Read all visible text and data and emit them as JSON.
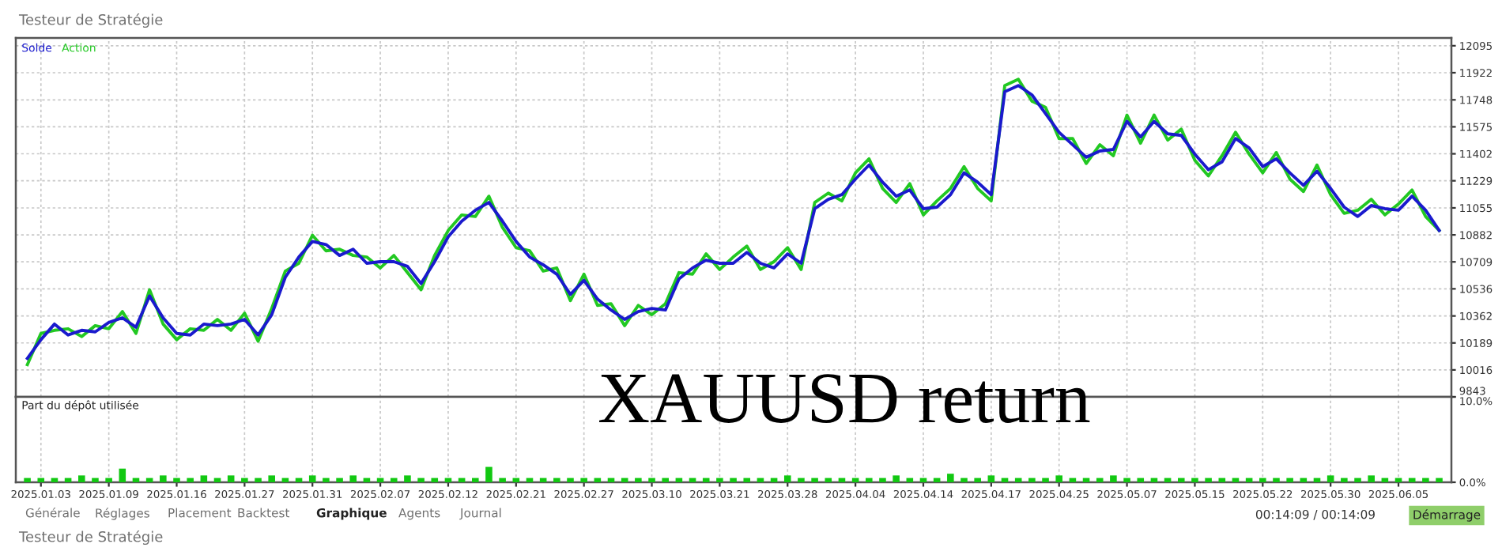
{
  "chart_data": [
    {
      "type": "line",
      "title": "Testeur de Stratégie",
      "legend": "top left",
      "grid": true,
      "tick_labels": "y",
      "annotations": [
        "XAUUSD return"
      ],
      "categories": [
        null,
        "2025.01.03",
        null,
        null,
        null,
        null,
        "2025.01.09",
        null,
        null,
        null,
        null,
        "2025.01.16",
        null,
        null,
        null,
        null,
        "2025.01.27",
        null,
        null,
        null,
        null,
        "2025.01.31",
        null,
        null,
        null,
        null,
        "2025.02.07",
        null,
        null,
        null,
        null,
        "2025.02.12",
        null,
        null,
        null,
        null,
        "2025.02.21",
        null,
        null,
        null,
        null,
        "2025.02.27",
        null,
        null,
        null,
        null,
        "2025.03.10",
        null,
        null,
        null,
        null,
        "2025.03.21",
        null,
        null,
        null,
        null,
        "2025.03.28",
        null,
        null,
        null,
        null,
        "2025.04.04",
        null,
        null,
        null,
        null,
        "2025.04.14",
        null,
        null,
        null,
        null,
        "2025.04.17",
        null,
        null,
        null,
        null,
        "2025.04.25",
        null,
        null,
        null,
        null,
        "2025.05.07",
        null,
        null,
        null,
        null,
        "2025.05.15",
        null,
        null,
        null,
        null,
        "2025.05.22",
        null,
        null,
        null,
        null,
        "2025.05.30",
        null,
        null,
        null,
        null,
        "2025.06.05",
        null,
        null,
        null
      ],
      "ylim": [
        9843,
        12145
      ],
      "yticks": [
        9843,
        10016,
        10189,
        10362,
        10536,
        10709,
        10882,
        11055,
        11229,
        11402,
        11575,
        11748,
        11922,
        12095
      ],
      "series": [
        {
          "name": "Solde",
          "color": "#1a1acd",
          "values": [
            10090,
            10210,
            10310,
            10240,
            10270,
            10260,
            10320,
            10350,
            10290,
            10490,
            10350,
            10250,
            10240,
            10310,
            10300,
            10310,
            10340,
            10240,
            10370,
            10610,
            10740,
            10840,
            10820,
            10750,
            10790,
            10700,
            10710,
            10710,
            10680,
            10570,
            10710,
            10870,
            10970,
            11040,
            11090,
            10970,
            10840,
            10740,
            10690,
            10630,
            10500,
            10590,
            10470,
            10400,
            10340,
            10390,
            10410,
            10400,
            10600,
            10670,
            10720,
            10700,
            10700,
            10770,
            10700,
            10670,
            10760,
            10700,
            11050,
            11110,
            11140,
            11240,
            11330,
            11220,
            11130,
            11170,
            11050,
            11060,
            11140,
            11280,
            11220,
            11140,
            11800,
            11840,
            11780,
            11660,
            11540,
            11460,
            11380,
            11420,
            11430,
            11610,
            11510,
            11610,
            11530,
            11520,
            11400,
            11300,
            11350,
            11500,
            11440,
            11320,
            11370,
            11280,
            11200,
            11290,
            11180,
            11060,
            11000,
            11070,
            11050,
            11040,
            11130,
            11040,
            10910
          ]
        },
        {
          "name": "Action",
          "color": "#22c822",
          "values": [
            10050,
            10250,
            10270,
            10280,
            10230,
            10300,
            10280,
            10390,
            10250,
            10530,
            10310,
            10210,
            10280,
            10270,
            10340,
            10270,
            10380,
            10200,
            10410,
            10650,
            10700,
            10880,
            10780,
            10790,
            10750,
            10740,
            10670,
            10750,
            10640,
            10530,
            10750,
            10910,
            11010,
            11000,
            11130,
            10930,
            10800,
            10780,
            10650,
            10670,
            10460,
            10630,
            10430,
            10440,
            10300,
            10430,
            10370,
            10440,
            10640,
            10630,
            10760,
            10660,
            10740,
            10810,
            10660,
            10710,
            10800,
            10660,
            11090,
            11150,
            11100,
            11280,
            11370,
            11180,
            11090,
            11210,
            11010,
            11100,
            11180,
            11320,
            11180,
            11100,
            11840,
            11880,
            11740,
            11700,
            11500,
            11500,
            11340,
            11460,
            11390,
            11650,
            11470,
            11650,
            11490,
            11560,
            11360,
            11260,
            11390,
            11540,
            11400,
            11280,
            11410,
            11240,
            11160,
            11330,
            11140,
            11020,
            11040,
            11110,
            11010,
            11080,
            11170,
            11000,
            10910
          ]
        }
      ]
    },
    {
      "type": "bar",
      "title": "Part du dépôt utilisée",
      "grid": true,
      "color": "#12c812",
      "annotations": [
        "Générale",
        "Réglages",
        "Placement",
        "Backtest",
        "Graphique",
        "Agents",
        "Journal",
        "00:14:09 / 00:14:09",
        "Démarrage",
        "Testeur de Stratégie"
      ],
      "categories": [
        null,
        "2025.01.03",
        null,
        null,
        null,
        null,
        "2025.01.09",
        null,
        null,
        null,
        null,
        "2025.01.16",
        null,
        null,
        null,
        null,
        "2025.01.27",
        null,
        null,
        null,
        null,
        "2025.01.31",
        null,
        null,
        null,
        null,
        "2025.02.07",
        null,
        null,
        null,
        null,
        "2025.02.12",
        null,
        null,
        null,
        null,
        "2025.02.21",
        null,
        null,
        null,
        null,
        "2025.02.27",
        null,
        null,
        null,
        null,
        "2025.03.10",
        null,
        null,
        null,
        null,
        "2025.03.21",
        null,
        null,
        null,
        null,
        "2025.03.28",
        null,
        null,
        null,
        null,
        "2025.04.04",
        null,
        null,
        null,
        null,
        "2025.04.14",
        null,
        null,
        null,
        null,
        "2025.04.17",
        null,
        null,
        null,
        null,
        "2025.04.25",
        null,
        null,
        null,
        null,
        "2025.05.07",
        null,
        null,
        null,
        null,
        "2025.05.15",
        null,
        null,
        null,
        null,
        "2025.05.22",
        null,
        null,
        null,
        null,
        "2025.05.30",
        null,
        null,
        null,
        null,
        "2025.06.05",
        null,
        null,
        null
      ],
      "ylim": [
        0,
        10
      ],
      "yticks": [
        {
          "value": 0,
          "label": "0.0%"
        },
        {
          "value": 10,
          "label": "10.0%"
        }
      ],
      "values": [
        0.5,
        0.5,
        0.5,
        0.5,
        0.8,
        0.5,
        0.5,
        1.6,
        0.5,
        0.5,
        0.8,
        0.5,
        0.5,
        0.8,
        0.5,
        0.8,
        0.5,
        0.5,
        0.8,
        0.5,
        0.5,
        0.8,
        0.5,
        0.5,
        0.8,
        0.5,
        0.5,
        0.5,
        0.8,
        0.5,
        0.5,
        0.5,
        0.5,
        0.5,
        1.8,
        0.5,
        0.5,
        0.5,
        0.5,
        0.5,
        0.5,
        0.5,
        0.5,
        0.5,
        0.5,
        0.5,
        0.5,
        0.5,
        0.5,
        0.5,
        0.5,
        0.5,
        0.5,
        0.5,
        0.5,
        0.5,
        0.8,
        0.5,
        0.5,
        0.5,
        0.5,
        0.5,
        0.5,
        0.5,
        0.8,
        0.5,
        0.5,
        0.5,
        1.0,
        0.5,
        0.5,
        0.8,
        0.5,
        0.5,
        0.5,
        0.5,
        0.8,
        0.5,
        0.5,
        0.5,
        0.8,
        0.5,
        0.5,
        0.5,
        0.5,
        0.5,
        0.5,
        0.5,
        0.5,
        0.5,
        0.5,
        0.5,
        0.5,
        0.5,
        0.5,
        0.5,
        0.8,
        0.5,
        0.5,
        0.8,
        0.5,
        0.5,
        0.5,
        0.5,
        0.5
      ]
    }
  ]
}
